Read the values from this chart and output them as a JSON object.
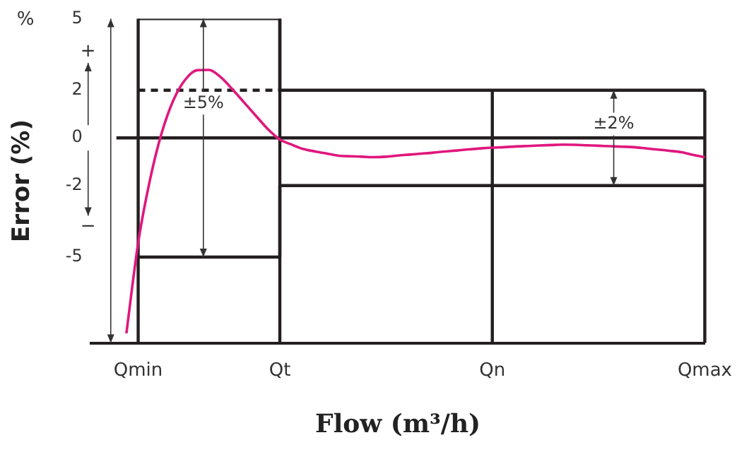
{
  "chart_data": {
    "type": "line",
    "xlabel": "Flow (m³/h)",
    "ylabel": "Error (%)",
    "categories": [
      null,
      null,
      null,
      null,
      "Qmin",
      null,
      null,
      null,
      null,
      null,
      null,
      null,
      null,
      null,
      null,
      null,
      "Qt",
      null,
      null,
      null,
      null,
      null,
      null,
      null,
      null,
      null,
      null,
      null,
      null,
      null,
      null,
      null,
      null,
      null,
      "Qn",
      null,
      null,
      null,
      null,
      null,
      null,
      null,
      null,
      null,
      null,
      null,
      null,
      null,
      null,
      null,
      null,
      null,
      "Qmax"
    ],
    "ylim": [
      -8.6,
      5
    ],
    "yticks": [
      5,
      2,
      0,
      -2,
      -5
    ],
    "grid": false,
    "legend": false,
    "marker": "none",
    "series": [
      {
        "color": "#e0177d",
        "values": [
          null,
          null,
          null,
          -8.2,
          -4.4,
          -1.76,
          0.22,
          1.6,
          2.45,
          2.84,
          2.85,
          2.54,
          2.03,
          1.47,
          0.91,
          0.36,
          -0.07,
          -0.28,
          -0.47,
          -0.57,
          -0.66,
          -0.75,
          -0.77,
          -0.79,
          -0.81,
          -0.79,
          -0.74,
          -0.7,
          -0.66,
          -0.62,
          -0.57,
          -0.53,
          -0.48,
          -0.44,
          -0.41,
          -0.39,
          -0.36,
          -0.34,
          -0.32,
          -0.3,
          -0.28,
          -0.29,
          -0.31,
          -0.33,
          -0.35,
          -0.37,
          -0.39,
          -0.44,
          -0.49,
          -0.54,
          -0.6,
          -0.71,
          -0.81
        ]
      },
      {
        "type": "step",
        "color": "#231f20",
        "values": [
          null,
          null,
          null,
          null,
          5,
          5,
          5,
          5,
          5,
          5,
          5,
          5,
          5,
          5,
          5,
          5,
          5,
          2,
          2,
          2,
          2,
          2,
          2,
          2,
          2,
          2,
          2,
          2,
          2,
          2,
          2,
          2,
          2,
          2,
          2,
          2,
          2,
          2,
          2,
          2,
          2,
          2,
          2,
          2,
          2,
          2,
          2,
          2,
          2,
          2,
          2,
          2,
          2
        ]
      },
      {
        "type": "step",
        "color": "#231f20",
        "values": [
          null,
          null,
          null,
          null,
          -5,
          -5,
          -5,
          -5,
          -5,
          -5,
          -5,
          -5,
          -5,
          -5,
          -5,
          -5,
          -5,
          -2,
          -2,
          -2,
          -2,
          -2,
          -2,
          -2,
          -2,
          -2,
          -2,
          -2,
          -2,
          -2,
          -2,
          -2,
          -2,
          -2,
          -2,
          -2,
          -2,
          -2,
          -2,
          -2,
          -2,
          -2,
          -2,
          -2,
          -2,
          -2,
          -2,
          -2,
          -2,
          -2,
          -2,
          -2,
          -2
        ]
      },
      {
        "color": "#231f20",
        "line_style": "dashed",
        "values": [
          null,
          null,
          null,
          null,
          2,
          2,
          2,
          2,
          2,
          2,
          2,
          2,
          2,
          2,
          2,
          2,
          2,
          null,
          null,
          null,
          null,
          null,
          null,
          null,
          null,
          null,
          null,
          null,
          null,
          null,
          null,
          null,
          null,
          null,
          null,
          null,
          null,
          null,
          null,
          null,
          null,
          null,
          null,
          null,
          null,
          null,
          null,
          null,
          null,
          null,
          null,
          null,
          null
        ]
      }
    ],
    "ref_lines": [
      {
        "axis": "y",
        "value": 0,
        "color": "#231f20"
      }
    ],
    "annotations": [
      {
        "text": "±5%",
        "y": 5
      },
      {
        "text": "±2%",
        "y": 2
      },
      "%",
      "+",
      "−"
    ]
  }
}
